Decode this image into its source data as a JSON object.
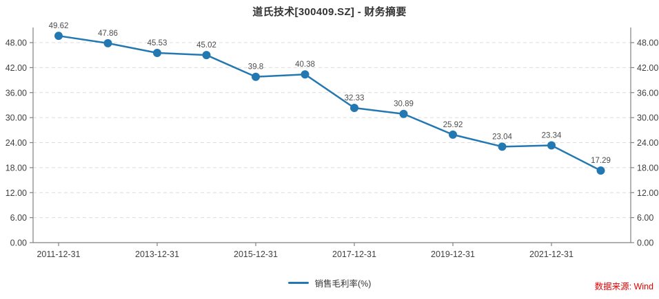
{
  "title": "道氏技术[300409.SZ] - 财务摘要",
  "source_note": "数据来源: Wind",
  "colors": {
    "line": "#2478b2",
    "marker": "#2478b2",
    "grid": "#dcdcdc",
    "axis": "#808080",
    "tick_label": "#404040",
    "data_label": "#4d4d4d",
    "title": "#333333",
    "source_text": "#e60000"
  },
  "chart_data": {
    "type": "line",
    "title": "道氏技术[300409.SZ] - 财务摘要",
    "x": [
      "2011-12-31",
      "2012-12-31",
      "2013-12-31",
      "2014-12-31",
      "2015-12-31",
      "2016-12-31",
      "2017-12-31",
      "2018-12-31",
      "2019-12-31",
      "2020-12-31",
      "2021-12-31",
      "2022-12-31"
    ],
    "series": [
      {
        "name": "销售毛利率(%)",
        "values": [
          49.62,
          47.86,
          45.53,
          45.02,
          39.8,
          40.38,
          32.33,
          30.89,
          25.92,
          23.04,
          23.34,
          17.29
        ]
      }
    ],
    "x_tick_labels": [
      "2011-12-31",
      "2013-12-31",
      "2015-12-31",
      "2017-12-31",
      "2019-12-31",
      "2021-12-31"
    ],
    "y_ticks": [
      "0.00",
      "6.00",
      "12.00",
      "18.00",
      "24.00",
      "30.00",
      "36.00",
      "42.00",
      "48.00"
    ],
    "ylim": [
      0,
      51.63
    ],
    "grid": "horizontal-dashed",
    "dual_y_axis": true,
    "data_labels": true,
    "legend_position": "bottom-center"
  }
}
